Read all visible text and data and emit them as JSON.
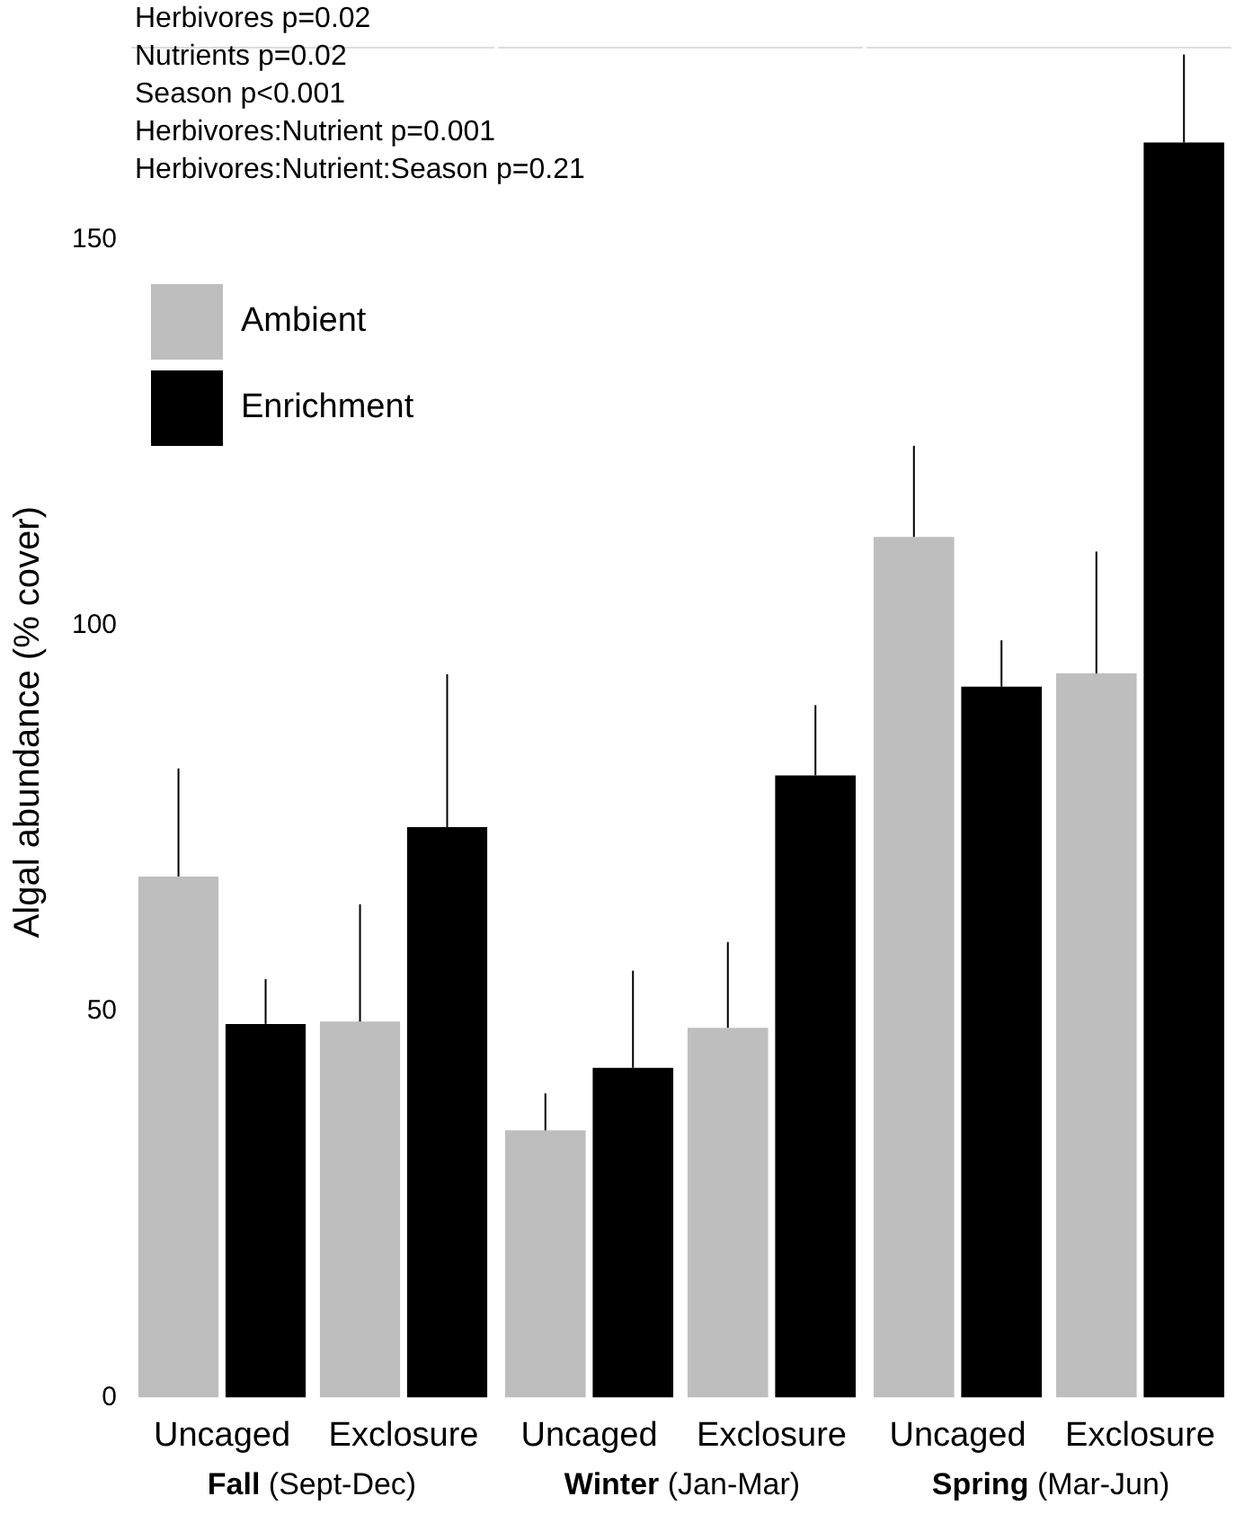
{
  "chart_data": [
    {
      "type": "bar",
      "xlabel": "Fall (Sept-Dec)",
      "ylabel": "Algal abundance (% cover)",
      "categories": [
        "Uncaged",
        "Exclosure"
      ],
      "ylim": [
        0,
        175
      ],
      "yticks": [
        0,
        50,
        100,
        150
      ],
      "legend": "top left",
      "annotations": [
        "Herbivores p=0.02",
        "Nutrients p=0.02",
        "Season p<0.001",
        "Herbivores:Nutrient p=0.001",
        "Herbivores:Nutrient:Season p=0.21"
      ],
      "series": [
        {
          "name": "Ambient",
          "color": "#bebebe",
          "values": [
            67.5,
            48.7
          ],
          "errors": [
            [
              67.5,
              81.5
            ],
            [
              48.7,
              63.9
            ]
          ]
        },
        {
          "name": "Enrichment",
          "color": "#000000",
          "values": [
            48.4,
            73.9
          ],
          "errors": [
            [
              48.4,
              54.2
            ],
            [
              73.9,
              93.7
            ]
          ]
        }
      ]
    },
    {
      "type": "bar",
      "xlabel": "Winter (Jan-Mar)",
      "categories": [
        "Uncaged",
        "Exclosure"
      ],
      "ylim": [
        0,
        175
      ],
      "tick_labels": "x",
      "series": [
        {
          "color": "#bebebe",
          "values": [
            34.6,
            47.9
          ],
          "errors": [
            [
              34.6,
              39.4
            ],
            [
              47.9,
              59.0
            ]
          ]
        },
        {
          "color": "#000000",
          "values": [
            42.7,
            80.6
          ],
          "errors": [
            [
              42.7,
              55.3
            ],
            [
              80.6,
              89.7
            ]
          ]
        }
      ]
    },
    {
      "type": "bar",
      "xlabel": "Spring (Mar-Jun)",
      "categories": [
        "Uncaged",
        "Exclosure"
      ],
      "ylim": [
        0,
        175
      ],
      "tick_labels": "x",
      "series": [
        {
          "color": "#bebebe",
          "values": [
            111.5,
            93.8
          ],
          "errors": [
            [
              111.5,
              123.3
            ],
            [
              93.8,
              109.6
            ]
          ]
        },
        {
          "color": "#000000",
          "values": [
            92.1,
            162.6
          ],
          "errors": [
            [
              92.1,
              98.1
            ],
            [
              162.6,
              174.0
            ]
          ]
        }
      ]
    }
  ]
}
